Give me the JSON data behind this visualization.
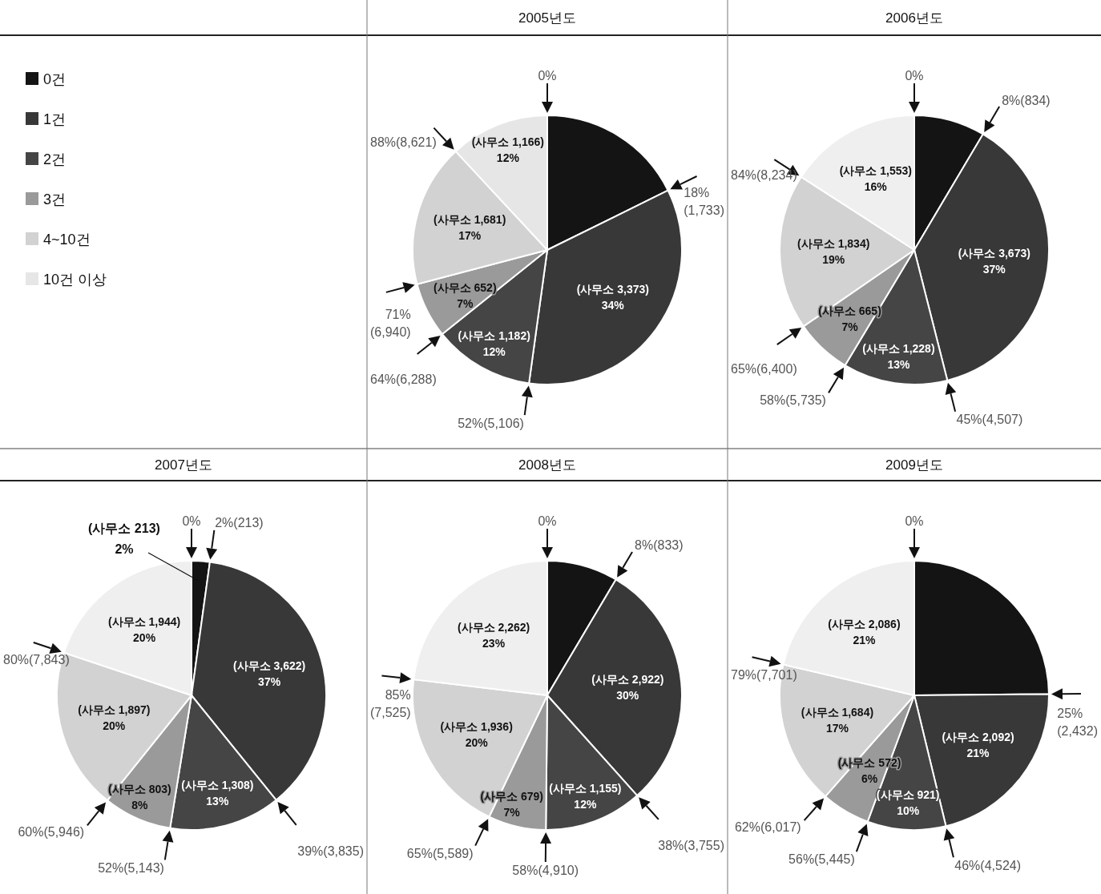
{
  "chart_data": [
    {
      "type": "pie",
      "title": "2005년도",
      "legend": "left",
      "categories": [
        "0건",
        "1건",
        "2건",
        "3건",
        "4~10건",
        "10건 이상"
      ],
      "values": [
        1733,
        3373,
        1182,
        652,
        1681,
        1166
      ],
      "colors": [
        "#141414",
        "#383838",
        "#454545",
        "#9a9a9a",
        "#d2d2d2",
        "#e6e6e6"
      ],
      "value_labels": [
        null,
        "(사무소 3,373)\n34%",
        "(사무소 1,182)\n12%",
        "(사무소 652)\n7%",
        "(사무소 1,681)\n17%",
        "(사무소 1,166)\n12%"
      ],
      "annotations": [
        "0%",
        "18%\n(1,733)",
        "52%(5,106)",
        "64%(6,288)",
        "71%\n(6,940)",
        "88%(8,621)"
      ]
    },
    {
      "type": "pie",
      "title": "2006년도",
      "values": [
        834,
        3673,
        1228,
        665,
        1834,
        1553
      ],
      "colors": [
        "#141414",
        "#383838",
        "#454545",
        "#9a9a9a",
        "#d2d2d2",
        "#efefef"
      ],
      "value_labels": [
        null,
        "(사무소 3,673)\n37%",
        "(사무소 1,228)\n13%",
        "(사무소 665)\n7%",
        "(사무소 1,834)\n19%",
        "(사무소 1,553)\n16%"
      ],
      "annotations": [
        "0%",
        "8%(834)",
        "45%(4,507)",
        "58%(5,735)",
        "65%(6,400)",
        "84%(8,234)"
      ]
    },
    {
      "type": "pie",
      "title": "2007년도",
      "values": [
        213,
        3622,
        1308,
        803,
        1897,
        1944
      ],
      "colors": [
        "#141414",
        "#383838",
        "#454545",
        "#9a9a9a",
        "#d2d2d2",
        "#efefef"
      ],
      "value_labels": [
        "(사무소 213)\n2%",
        "(사무소 3,622)\n37%",
        "(사무소 1,308)\n13%",
        "(사무소 803)\n8%",
        "(사무소 1,897)\n20%",
        "(사무소 1,944)\n20%"
      ],
      "annotations": [
        "0%",
        "2%(213)",
        "39%(3,835)",
        "52%(5,143)",
        "60%(5,946)",
        "80%(7,843)"
      ]
    },
    {
      "type": "pie",
      "title": "2008년도",
      "values": [
        833,
        2922,
        1155,
        679,
        1936,
        2262
      ],
      "colors": [
        "#141414",
        "#383838",
        "#454545",
        "#9a9a9a",
        "#d2d2d2",
        "#efefef"
      ],
      "value_labels": [
        null,
        "(사무소 2,922)\n30%",
        "(사무소 1,155)\n12%",
        "(사무소 679)\n7%",
        "(사무소 1,936)\n20%",
        "(사무소 2,262)\n23%"
      ],
      "annotations": [
        "0%",
        "8%(833)",
        "38%(3,755)",
        "58%(4,910)",
        "65%(5,589)",
        "85%\n(7,525)"
      ]
    },
    {
      "type": "pie",
      "title": "2009년도",
      "values": [
        2432,
        2092,
        921,
        572,
        1684,
        2086
      ],
      "colors": [
        "#141414",
        "#383838",
        "#454545",
        "#9a9a9a",
        "#d2d2d2",
        "#efefef"
      ],
      "value_labels": [
        null,
        "(사무소 2,092)\n21%",
        "(사무소 921)\n10%",
        "(사무소 572)\n6%",
        "(사무소 1,684)\n17%",
        "(사무소 2,086)\n21%"
      ],
      "annotations": [
        "0%",
        "25%\n(2,432)",
        "46%(4,524)",
        "56%(5,445)",
        "62%(6,017)",
        "79%(7,701)"
      ]
    }
  ]
}
